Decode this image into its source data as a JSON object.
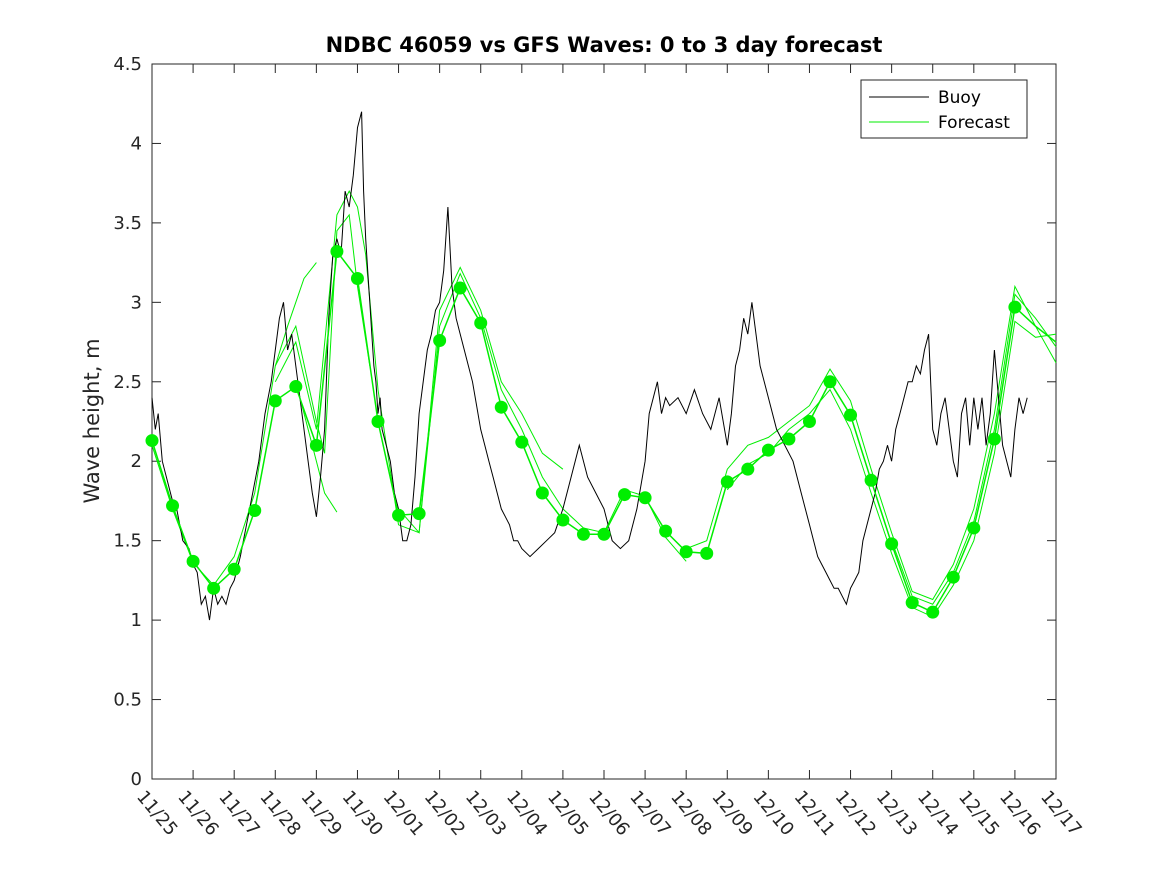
{
  "chart_data": {
    "type": "line",
    "title": "NDBC 46059 vs GFS Waves: 0 to 3 day forecast",
    "xlabel": "",
    "ylabel": "Wave height, m",
    "xlim": [
      0,
      22
    ],
    "ylim": [
      0,
      4.5
    ],
    "yticks": [
      0,
      0.5,
      1,
      1.5,
      2,
      2.5,
      3,
      3.5,
      4,
      4.5
    ],
    "ytick_labels": [
      "0",
      "0.5",
      "1",
      "1.5",
      "2",
      "2.5",
      "3",
      "3.5",
      "4",
      "4.5"
    ],
    "xtick_labels": [
      "11/25",
      "11/26",
      "11/27",
      "11/28",
      "11/29",
      "11/30",
      "12/01",
      "12/02",
      "12/03",
      "12/04",
      "12/05",
      "12/06",
      "12/07",
      "12/08",
      "12/09",
      "12/10",
      "12/11",
      "12/12",
      "12/13",
      "12/14",
      "12/15",
      "12/16",
      "12/17"
    ],
    "colors": {
      "buoy": "#000000",
      "forecast": "#00ee00",
      "axis": "#262626"
    },
    "legend": {
      "position": "top-right",
      "entries": [
        "Buoy",
        "Forecast"
      ]
    },
    "series": [
      {
        "name": "Buoy",
        "x": [
          0,
          0.08,
          0.15,
          0.25,
          0.35,
          0.5,
          0.6,
          0.75,
          0.9,
          1.0,
          1.1,
          1.2,
          1.3,
          1.4,
          1.5,
          1.6,
          1.7,
          1.8,
          1.9,
          2.0,
          2.15,
          2.3,
          2.45,
          2.6,
          2.75,
          2.9,
          3.0,
          3.1,
          3.2,
          3.3,
          3.4,
          3.5,
          3.6,
          3.7,
          3.8,
          3.9,
          4.0,
          4.1,
          4.2,
          4.3,
          4.4,
          4.5,
          4.6,
          4.7,
          4.8,
          4.9,
          5.0,
          5.1,
          5.15,
          5.2,
          5.25,
          5.3,
          5.35,
          5.4,
          5.45,
          5.5,
          5.55,
          5.6,
          5.7,
          5.8,
          5.9,
          6.0,
          6.1,
          6.2,
          6.3,
          6.4,
          6.5,
          6.6,
          6.7,
          6.8,
          6.9,
          7.0,
          7.1,
          7.2,
          7.3,
          7.4,
          7.5,
          7.6,
          7.7,
          7.8,
          7.9,
          8.0,
          8.1,
          8.2,
          8.3,
          8.4,
          8.5,
          8.6,
          8.7,
          8.8,
          8.9,
          9.0,
          9.2,
          9.4,
          9.6,
          9.8,
          10.0,
          10.2,
          10.4,
          10.6,
          10.8,
          11.0,
          11.2,
          11.4,
          11.6,
          11.8,
          12.0,
          12.1,
          12.2,
          12.3,
          12.4,
          12.5,
          12.6,
          12.8,
          13.0,
          13.2,
          13.4,
          13.6,
          13.8,
          14.0,
          14.1,
          14.2,
          14.3,
          14.4,
          14.5,
          14.6,
          14.8,
          15.0,
          15.2,
          15.4,
          15.6,
          15.8,
          16.0,
          16.1,
          16.2,
          16.3,
          16.4,
          16.5,
          16.6,
          16.7,
          16.8,
          16.9,
          17.0,
          17.1,
          17.2,
          17.3,
          17.4,
          17.5,
          17.6,
          17.7,
          17.8,
          17.9,
          18.0,
          18.1,
          18.2,
          18.3,
          18.4,
          18.5,
          18.6,
          18.7,
          18.8,
          18.9,
          19.0,
          19.1,
          19.2,
          19.3,
          19.4,
          19.5,
          19.6,
          19.7,
          19.8,
          19.9,
          20.0,
          20.1,
          20.2,
          20.3,
          20.4,
          20.5,
          20.6,
          20.7,
          20.8,
          20.9,
          21.0,
          21.1,
          21.2,
          21.3
        ],
        "values": [
          2.4,
          2.2,
          2.3,
          2.0,
          1.9,
          1.75,
          1.7,
          1.5,
          1.45,
          1.35,
          1.3,
          1.1,
          1.15,
          1.0,
          1.2,
          1.1,
          1.15,
          1.1,
          1.2,
          1.25,
          1.4,
          1.6,
          1.8,
          2.0,
          2.3,
          2.5,
          2.7,
          2.9,
          3.0,
          2.7,
          2.8,
          2.6,
          2.4,
          2.2,
          2.0,
          1.8,
          1.65,
          1.9,
          2.2,
          2.9,
          3.3,
          3.4,
          3.3,
          3.7,
          3.6,
          3.8,
          4.1,
          4.2,
          3.7,
          3.4,
          3.2,
          3.0,
          2.8,
          2.6,
          2.5,
          2.3,
          2.4,
          2.2,
          2.1,
          2.0,
          1.8,
          1.7,
          1.5,
          1.5,
          1.6,
          1.9,
          2.3,
          2.5,
          2.7,
          2.8,
          2.95,
          3.0,
          3.2,
          3.6,
          3.1,
          2.9,
          2.8,
          2.7,
          2.6,
          2.5,
          2.35,
          2.2,
          2.1,
          2.0,
          1.9,
          1.8,
          1.7,
          1.65,
          1.6,
          1.5,
          1.5,
          1.45,
          1.4,
          1.45,
          1.5,
          1.55,
          1.7,
          1.9,
          2.1,
          1.9,
          1.8,
          1.7,
          1.5,
          1.45,
          1.5,
          1.7,
          2.0,
          2.3,
          2.4,
          2.5,
          2.3,
          2.4,
          2.35,
          2.4,
          2.3,
          2.45,
          2.3,
          2.2,
          2.4,
          2.1,
          2.3,
          2.6,
          2.7,
          2.9,
          2.8,
          3.0,
          2.6,
          2.4,
          2.2,
          2.1,
          2.0,
          1.8,
          1.6,
          1.5,
          1.4,
          1.35,
          1.3,
          1.25,
          1.2,
          1.2,
          1.15,
          1.1,
          1.2,
          1.25,
          1.3,
          1.5,
          1.6,
          1.7,
          1.8,
          1.95,
          2.0,
          2.1,
          2.0,
          2.2,
          2.3,
          2.4,
          2.5,
          2.5,
          2.6,
          2.55,
          2.7,
          2.8,
          2.2,
          2.1,
          2.3,
          2.4,
          2.2,
          2.0,
          1.9,
          2.3,
          2.4,
          2.1,
          2.4,
          2.2,
          2.4,
          2.1,
          2.3,
          2.7,
          2.4,
          2.1,
          2.0,
          1.9,
          2.2,
          2.4,
          2.3,
          2.4
        ]
      },
      {
        "name": "Forecast",
        "x": [
          0,
          0.5,
          1.0,
          1.5,
          2.0,
          2.5,
          3.0,
          3.5,
          4.0,
          4.5,
          5.0,
          5.5,
          6.0,
          6.5,
          7.0,
          7.5,
          8.0,
          8.5,
          9.0,
          9.5,
          10.0,
          10.5,
          11.0,
          11.5,
          12.0,
          12.5,
          13.0,
          13.5,
          14.0,
          14.5,
          15.0,
          15.5,
          16.0,
          16.5,
          17.0,
          17.5,
          18.0,
          18.5,
          19.0,
          19.5,
          20.0,
          20.5,
          21.0,
          21.5,
          22.0
        ],
        "values": [
          2.13,
          1.72,
          1.37,
          1.2,
          1.32,
          1.69,
          2.38,
          2.47,
          2.1,
          3.32,
          3.15,
          2.25,
          1.66,
          1.67,
          2.76,
          3.09,
          2.87,
          2.34,
          2.12,
          1.8,
          1.63,
          1.54,
          1.54,
          1.79,
          1.77,
          1.56,
          1.43,
          1.42,
          1.87,
          1.95,
          2.07,
          2.14,
          2.25,
          2.5,
          2.29,
          1.88,
          1.48,
          1.11,
          1.05,
          1.27,
          1.58,
          2.14,
          2.97,
          2.85,
          2.75
        ]
      }
    ],
    "forecast_ensemble": [
      {
        "x": [
          0,
          0.5,
          1.0,
          1.5,
          2.0,
          2.5,
          3.0,
          3.3,
          3.5,
          3.7,
          4.0
        ],
        "values": [
          2.1,
          1.7,
          1.36,
          1.22,
          1.4,
          1.8,
          2.6,
          2.85,
          3.0,
          3.15,
          3.25
        ]
      },
      {
        "x": [
          3.0,
          3.5,
          4.0,
          4.5,
          4.8,
          5.0,
          5.2,
          5.5,
          6.0,
          6.5,
          7.0,
          7.5,
          8.0,
          8.5,
          9.0,
          9.5,
          10.0
        ],
        "values": [
          2.5,
          2.75,
          2.2,
          3.55,
          3.7,
          3.6,
          3.3,
          2.45,
          1.6,
          1.55,
          2.95,
          3.22,
          2.95,
          2.5,
          2.3,
          2.05,
          1.95
        ]
      },
      {
        "x": [
          3.0,
          3.5,
          4.0,
          4.2,
          4.5,
          4.8,
          5.0,
          5.3
        ],
        "values": [
          2.6,
          2.85,
          2.25,
          2.05,
          3.45,
          3.55,
          3.1,
          2.6
        ]
      },
      {
        "x": [
          3.5,
          4.0,
          4.2,
          4.5
        ],
        "values": [
          2.5,
          2.0,
          1.8,
          1.68
        ]
      },
      {
        "x": [
          6.0,
          6.5,
          7.0,
          7.5,
          8.0,
          8.5,
          9.0,
          9.5,
          10.0,
          10.5,
          11.0,
          11.5,
          12.0,
          12.5,
          13.0
        ],
        "values": [
          1.7,
          1.55,
          2.85,
          3.18,
          2.9,
          2.45,
          2.2,
          1.9,
          1.7,
          1.58,
          1.55,
          1.82,
          1.78,
          1.52,
          1.37
        ]
      },
      {
        "x": [
          13.0,
          13.5,
          14.0,
          14.5,
          15.0,
          15.5,
          16.0,
          16.5,
          17.0,
          17.5,
          18.0,
          18.5,
          19.0,
          19.5,
          20.0,
          20.5,
          21.0,
          21.5,
          22.0
        ],
        "values": [
          1.45,
          1.5,
          1.95,
          2.1,
          2.15,
          2.25,
          2.35,
          2.58,
          2.38,
          1.95,
          1.55,
          1.18,
          1.13,
          1.35,
          1.7,
          2.3,
          3.1,
          2.85,
          2.62
        ]
      },
      {
        "x": [
          14.0,
          14.5,
          15.0,
          15.5,
          16.0,
          16.5,
          17.0,
          17.5,
          18.0,
          18.5,
          19.0,
          19.5,
          20.0,
          20.5,
          21.0,
          21.5,
          22.0
        ],
        "values": [
          1.82,
          1.98,
          2.05,
          2.2,
          2.3,
          2.45,
          2.2,
          1.8,
          1.42,
          1.08,
          1.02,
          1.22,
          1.5,
          2.05,
          2.88,
          2.78,
          2.8
        ]
      },
      {
        "x": [
          18.0,
          18.5,
          19.0,
          19.5,
          20.0,
          20.5,
          21.0,
          21.5,
          22.0
        ],
        "values": [
          1.5,
          1.15,
          1.1,
          1.3,
          1.62,
          2.2,
          3.05,
          2.9,
          2.72
        ]
      }
    ]
  }
}
